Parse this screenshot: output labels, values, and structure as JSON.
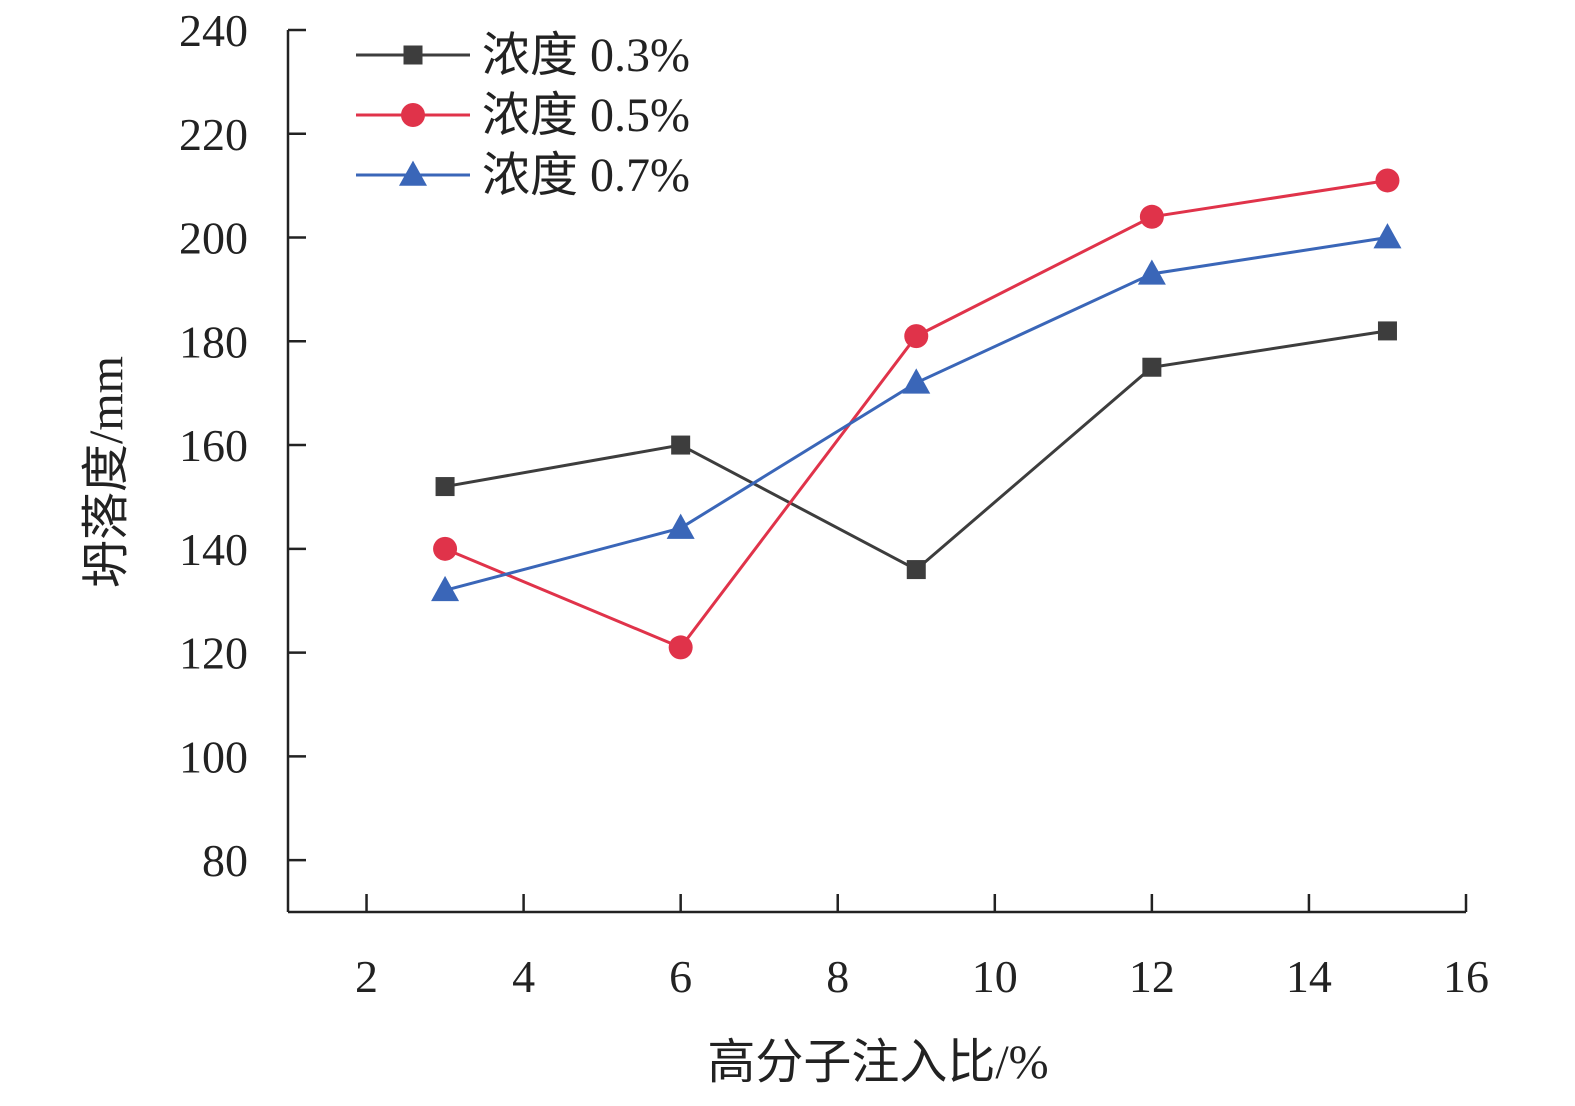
{
  "chart_data": {
    "type": "line",
    "xlabel": "高分子注入比/%",
    "ylabel": "坍落度/mm",
    "xlim": [
      1,
      16
    ],
    "ylim": [
      70,
      240
    ],
    "xticks": [
      "2",
      "4",
      "6",
      "8",
      "10",
      "12",
      "14",
      "16"
    ],
    "yticks": [
      "80",
      "100",
      "120",
      "140",
      "160",
      "180",
      "200",
      "220",
      "240"
    ],
    "grid": false,
    "legend_position": "top-left",
    "x": [
      3,
      6,
      9,
      12,
      15
    ],
    "series": [
      {
        "name": "浓度 0.3%",
        "marker": "square",
        "color": "#3d3d3d",
        "values": [
          152,
          160,
          136,
          175,
          182
        ]
      },
      {
        "name": "浓度 0.5%",
        "marker": "circle",
        "color": "#e0334a",
        "values": [
          140,
          121,
          181,
          204,
          211
        ]
      },
      {
        "name": "浓度 0.7%",
        "marker": "triangle",
        "color": "#3a66b8",
        "values": [
          132,
          144,
          172,
          193,
          200
        ]
      }
    ]
  }
}
